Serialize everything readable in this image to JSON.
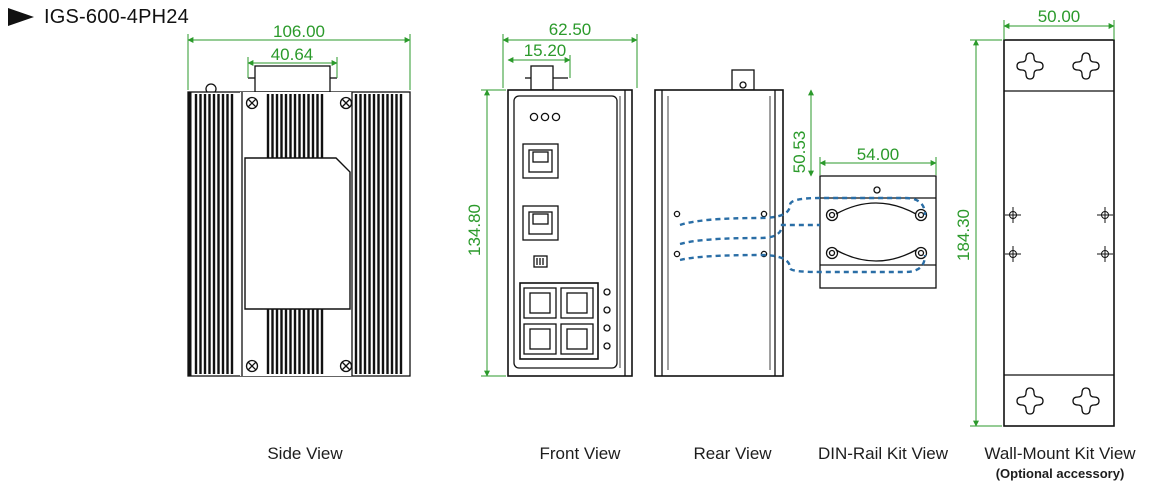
{
  "product": {
    "model": "IGS-600-4PH24"
  },
  "dimensions": {
    "side_width": "106.00",
    "side_connector_width": "40.64",
    "front_width": "62.50",
    "front_top_offset": "15.20",
    "front_height": "134.80",
    "din_offset": "50.53",
    "din_width": "54.00",
    "wall_width": "50.00",
    "wall_height": "184.30"
  },
  "views": {
    "side": "Side View",
    "front": "Front View",
    "rear": "Rear View",
    "din": "DIN-Rail Kit View",
    "wall": "Wall-Mount Kit View",
    "wall_note": "(Optional accessory)"
  },
  "colors": {
    "dimension": "#2b9a2b",
    "dashed": "#2a6ea6",
    "outline": "#111111"
  }
}
